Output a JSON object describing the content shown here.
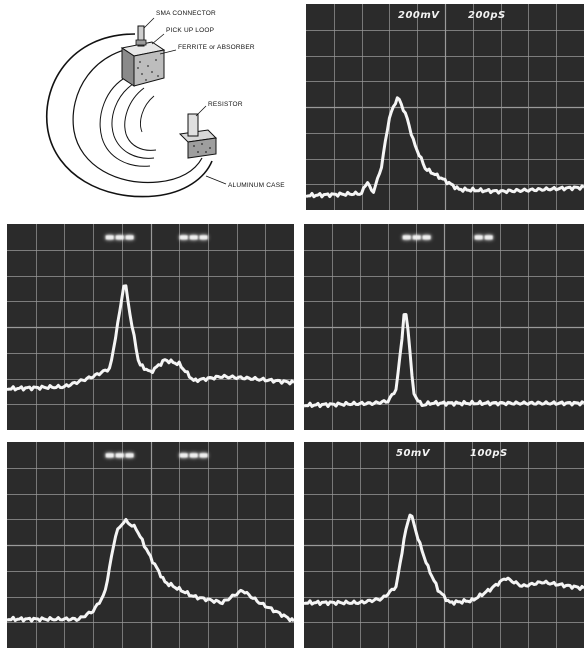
{
  "figure": {
    "diagram": {
      "callouts": {
        "sma": "SMA CONNECTOR",
        "pickup": "PICK UP LOOP",
        "ferrite": "FERRITE or ABSORBER",
        "resistor": "RESISTOR",
        "case": "ALUMINUM CASE"
      }
    },
    "scopes": [
      {
        "id": "scope-top-right",
        "volts": "200mV",
        "time": "200pS"
      },
      {
        "id": "scope-mid-left",
        "volts": "",
        "time": ""
      },
      {
        "id": "scope-mid-right",
        "volts": "",
        "time": ""
      },
      {
        "id": "scope-bottom-left",
        "volts": "",
        "time": ""
      },
      {
        "id": "scope-bottom-right",
        "volts": "50mV",
        "time": "100pS"
      }
    ]
  },
  "colors": {
    "screen": "#2b2b2b",
    "grid": "#9a9a9a",
    "trace": "#f5f5f5"
  }
}
